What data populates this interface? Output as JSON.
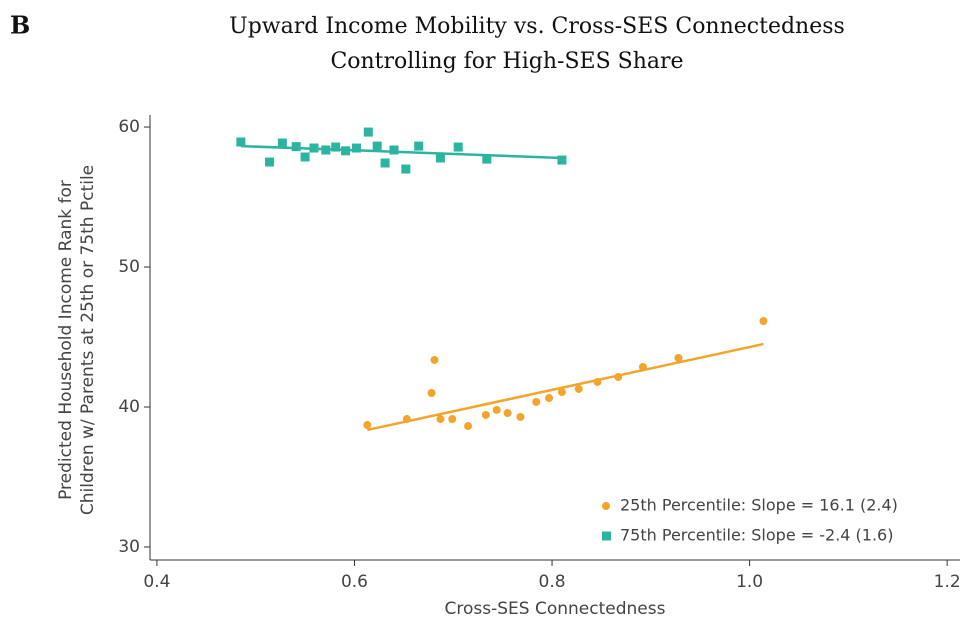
{
  "chart_data": {
    "type": "scatter",
    "panel_label": "B",
    "title": "Upward Income Mobility vs. Cross-SES Connectedness",
    "subtitle": "Controlling for High-SES Share",
    "xlabel": "Cross-SES Connectedness",
    "ylabel": [
      "Predicted Household Income Rank for",
      "Children w/ Parents at 25th or 75th Pctile"
    ],
    "xlim": [
      0.393,
      1.213
    ],
    "ylim": [
      29.07,
      60.86
    ],
    "xticks": [
      0.4,
      0.6,
      0.8,
      {
        "value": 1,
        "label": "1.0"
      },
      1.2
    ],
    "yticks": [
      30,
      40,
      50,
      60
    ],
    "legend": "lower right",
    "series": [
      {
        "name": "25th Percentile: Slope = 16.1 (2.4)",
        "color": "#f3a42a",
        "marker": "circle",
        "x": [
          0.613,
          0.653,
          0.678,
          0.681,
          0.687,
          0.699,
          0.715,
          0.733,
          0.744,
          0.755,
          0.768,
          0.784,
          0.797,
          0.81,
          0.827,
          0.846,
          0.867,
          0.892,
          0.928,
          1.014
        ],
        "values": [
          38.71,
          39.14,
          41.0,
          43.36,
          39.14,
          39.14,
          38.64,
          39.43,
          39.79,
          39.57,
          39.29,
          40.36,
          40.64,
          41.07,
          41.29,
          41.79,
          42.14,
          42.86,
          43.5,
          46.14
        ],
        "fit": {
          "x": [
            0.613,
            1.014
          ],
          "values": [
            38.36,
            44.5
          ]
        }
      },
      {
        "name": "75th Percentile: Slope = -2.4 (1.6)",
        "color": "#2bb5a0",
        "marker": "square",
        "x": [
          0.485,
          0.514,
          0.527,
          0.541,
          0.55,
          0.559,
          0.571,
          0.581,
          0.591,
          0.602,
          0.614,
          0.623,
          0.631,
          0.64,
          0.652,
          0.665,
          0.687,
          0.705,
          0.734,
          0.81
        ],
        "values": [
          58.93,
          57.5,
          58.86,
          58.6,
          57.86,
          58.5,
          58.36,
          58.57,
          58.3,
          58.5,
          59.64,
          58.64,
          57.43,
          58.36,
          57.0,
          58.64,
          57.79,
          58.57,
          57.71,
          57.64
        ],
        "fit": {
          "x": [
            0.485,
            0.81
          ],
          "values": [
            58.64,
            57.79
          ]
        }
      }
    ]
  }
}
